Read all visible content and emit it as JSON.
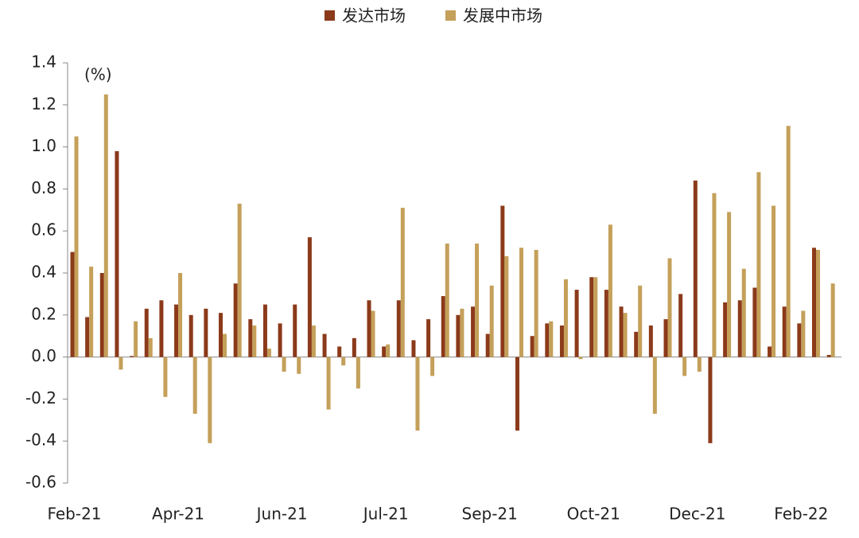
{
  "chart_data": {
    "type": "bar",
    "annotation": "(%)",
    "categories": [
      "Feb-21",
      null,
      null,
      null,
      null,
      null,
      null,
      "Apr-21",
      null,
      null,
      null,
      null,
      null,
      null,
      "Jun-21",
      null,
      null,
      null,
      null,
      null,
      null,
      "Jul-21",
      null,
      null,
      null,
      null,
      null,
      null,
      "Sep-21",
      null,
      null,
      null,
      null,
      null,
      null,
      "Oct-21",
      null,
      null,
      null,
      null,
      null,
      null,
      "Dec-21",
      null,
      null,
      null,
      null,
      null,
      null,
      "Feb-22",
      null,
      null
    ],
    "series": [
      {
        "name": "发达市场",
        "color": "#8b3a1a",
        "values": [
          0.5,
          0.19,
          0.4,
          0.98,
          0.005,
          0.23,
          0.27,
          0.25,
          0.2,
          0.23,
          0.21,
          0.35,
          0.18,
          0.25,
          0.16,
          0.25,
          0.57,
          0.11,
          0.05,
          0.09,
          0.27,
          0.05,
          0.27,
          0.08,
          0.18,
          0.29,
          0.2,
          0.24,
          0.11,
          0.72,
          -0.35,
          0.1,
          0.16,
          0.15,
          0.32,
          0.38,
          0.32,
          0.24,
          0.12,
          0.15,
          0.18,
          0.3,
          0.84,
          -0.41,
          0.26,
          0.27,
          0.33,
          0.05,
          0.24,
          0.16,
          0.52,
          0.01
        ]
      },
      {
        "name": "发展中市场",
        "color": "#c4a05a",
        "values": [
          1.05,
          0.43,
          1.25,
          -0.06,
          0.17,
          0.09,
          -0.19,
          0.4,
          -0.27,
          -0.41,
          0.11,
          0.73,
          0.15,
          0.04,
          -0.07,
          -0.08,
          0.15,
          -0.25,
          -0.04,
          -0.15,
          0.22,
          0.06,
          0.71,
          -0.35,
          -0.09,
          0.54,
          0.23,
          0.54,
          0.34,
          0.48,
          0.52,
          0.51,
          0.17,
          0.37,
          -0.01,
          0.38,
          0.63,
          0.21,
          0.34,
          -0.27,
          0.47,
          -0.09,
          -0.07,
          0.78,
          0.69,
          0.42,
          0.88,
          0.72,
          1.1,
          0.22,
          0.51,
          0.35
        ]
      }
    ],
    "ylim": [
      -0.6,
      1.4
    ],
    "yticks": [
      -0.6,
      -0.4,
      -0.2,
      {
        "value": 0,
        "label": "0.0"
      },
      0.2,
      0.4,
      0.6,
      0.8,
      {
        "value": 1,
        "label": "1.0"
      },
      1.2,
      1.4
    ]
  }
}
